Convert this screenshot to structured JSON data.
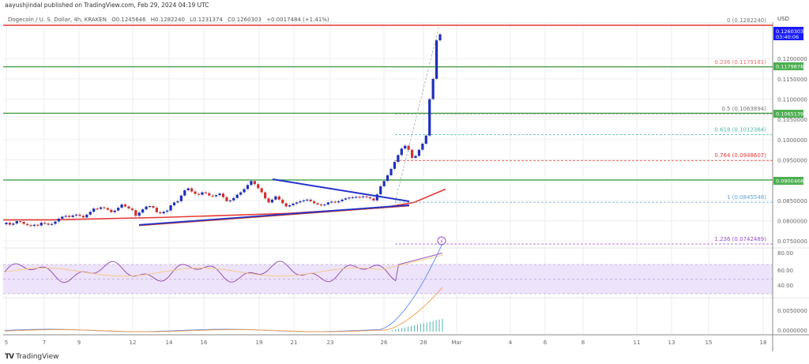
{
  "header": {
    "publisher": "aayushjindal published on TradingView.com, Feb 29, 2024 04:19 UTC",
    "symbol": "Dogecoin / U. S. Dollar, 4h, KRAKEN",
    "open": "O0.1245646",
    "high": "H0.1282240",
    "low": "L0.1231374",
    "close": "C0.1260303",
    "change": "+0.0017484 (+1.41%)"
  },
  "price_axis": {
    "currency": "USD",
    "ticks": [
      "0.1200000",
      "0.1150000",
      "0.1100000",
      "0.1050000",
      "0.1000000",
      "0.0950000",
      "0.0850000",
      "0.0800000",
      "0.0750000"
    ],
    "current_price": "0.1260303",
    "countdown": "03:40:06",
    "badges": [
      {
        "value": "0.1179878",
        "color": "#4caf50"
      },
      {
        "value": "0.1065139",
        "color": "#4caf50"
      },
      {
        "value": "0.0900468",
        "color": "#4caf50"
      }
    ]
  },
  "rsi_axis": {
    "ticks": [
      "80.00",
      "60.00",
      "40.00"
    ]
  },
  "macd_axis": {
    "ticks": [
      "0.0050000",
      "0.0000000"
    ]
  },
  "time_axis": {
    "ticks": [
      "5",
      "7",
      "9",
      "12",
      "14",
      "16",
      "19",
      "21",
      "23",
      "26",
      "28",
      "Mar",
      "4",
      "6",
      "8",
      "11",
      "13",
      "15",
      "18"
    ]
  },
  "footer": {
    "logo": "TV",
    "brand": "TradingView"
  },
  "colors": {
    "bull": "#1e2fb8",
    "bear": "#d32f2f",
    "resistance": "#e53935",
    "support": "#43a047",
    "trendline": "#2233cc",
    "ma": "#e53935",
    "rsi": "#8e44ad",
    "rsi_ma": "#f5c77e",
    "rsi_band": "#ede3fb",
    "macd": "#5b8def",
    "signal": "#f39c4a",
    "hist": "#26a69a",
    "price_badge": "#1a1aff"
  },
  "chart_data": {
    "type": "candlestick",
    "title": "Dogecoin / U. S. Dollar, 4h, KRAKEN",
    "xlabel": "",
    "ylabel": "USD",
    "ylim": [
      0.074,
      0.1285
    ],
    "x_ticks": [
      "5",
      "7",
      "9",
      "12",
      "14",
      "16",
      "19",
      "21",
      "23",
      "26",
      "28",
      "Mar",
      "4",
      "6",
      "8",
      "11",
      "13",
      "15",
      "18"
    ],
    "ohlc_last": {
      "open": 0.1245646,
      "high": 0.128224,
      "low": 0.1231374,
      "close": 0.1260303,
      "change": 0.0017484,
      "change_pct": 1.41
    },
    "horizontal_levels": [
      {
        "name": "resistance",
        "price": 0.128224,
        "color": "#e53935"
      },
      {
        "name": "support-1",
        "price": 0.1179878,
        "color": "#43a047"
      },
      {
        "name": "support-2",
        "price": 0.1065139,
        "color": "#43a047"
      },
      {
        "name": "support-3",
        "price": 0.0900468,
        "color": "#43a047"
      }
    ],
    "fibonacci": [
      {
        "level": "0",
        "price": 0.128224,
        "label": "0 (0.1282240)",
        "color": "#777777"
      },
      {
        "level": "0.236",
        "price": 0.1179181,
        "label": "0.236 (0.1179181)",
        "color": "#e57373"
      },
      {
        "level": "0.5",
        "price": 0.1063894,
        "label": "0.5 (0.1063894)",
        "color": "#777777"
      },
      {
        "level": "0.618",
        "price": 0.1012364,
        "label": "0.618 (0.1012364)",
        "color": "#4db6ac"
      },
      {
        "level": "0.764",
        "price": 0.0948607,
        "label": "0.764 (0.0948607)",
        "color": "#e53935"
      },
      {
        "level": "1",
        "price": 0.0845548,
        "label": "1 (0.0845548)",
        "color": "#64a0d0"
      },
      {
        "level": "1.236",
        "price": 0.0742489,
        "label": "1.236 (0.0742489)",
        "color": "#9c4dcc"
      }
    ],
    "trendlines": [
      {
        "name": "descending-resistance",
        "from": [
          345,
          0.0905
        ],
        "to": [
          518,
          0.0858
        ]
      },
      {
        "name": "ascending-support",
        "from": [
          175,
          0.08
        ],
        "to": [
          518,
          0.0838
        ]
      }
    ],
    "candles_close": [
      0.0795,
      0.079,
      0.0793,
      0.0799,
      0.0797,
      0.0792,
      0.0789,
      0.0787,
      0.079,
      0.0788,
      0.0795,
      0.0793,
      0.079,
      0.0792,
      0.0798,
      0.0805,
      0.081,
      0.0812,
      0.0809,
      0.0813,
      0.0815,
      0.0812,
      0.0808,
      0.0815,
      0.0822,
      0.083,
      0.0829,
      0.0833,
      0.0831,
      0.0827,
      0.0821,
      0.0825,
      0.0832,
      0.084,
      0.0835,
      0.083,
      0.0826,
      0.0812,
      0.082,
      0.0828,
      0.0835,
      0.0836,
      0.0832,
      0.0821,
      0.0818,
      0.0822,
      0.0825,
      0.0838,
      0.0845,
      0.0848,
      0.0862,
      0.0875,
      0.088,
      0.0872,
      0.0866,
      0.0864,
      0.087,
      0.0868,
      0.0862,
      0.086,
      0.0863,
      0.0867,
      0.0858,
      0.0848,
      0.085,
      0.0856,
      0.0864,
      0.087,
      0.0878,
      0.0888,
      0.0898,
      0.089,
      0.088,
      0.087,
      0.0855,
      0.0845,
      0.0852,
      0.086,
      0.0852,
      0.0843,
      0.0835,
      0.0838,
      0.0842,
      0.0845,
      0.0848,
      0.085,
      0.0852,
      0.0848,
      0.0843,
      0.084,
      0.0838,
      0.084,
      0.0845,
      0.0847,
      0.0845,
      0.0848,
      0.0852,
      0.0855,
      0.0857,
      0.0858,
      0.0859,
      0.0858,
      0.086,
      0.0858,
      0.0855,
      0.085,
      0.0865,
      0.0885,
      0.0898,
      0.0912,
      0.0928,
      0.0945,
      0.0962,
      0.0978,
      0.0985,
      0.0975,
      0.0955,
      0.096,
      0.0975,
      0.099,
      0.101,
      0.11,
      0.115,
      0.1245,
      0.126
    ],
    "moving_average": [
      [
        0,
        0.0802
      ],
      [
        60,
        0.0802
      ],
      [
        200,
        0.0808
      ],
      [
        360,
        0.0818
      ],
      [
        480,
        0.0832
      ],
      [
        520,
        0.0845
      ],
      [
        560,
        0.0878
      ]
    ],
    "rsi": {
      "ylim": [
        20,
        90
      ],
      "band": [
        40,
        70
      ],
      "mid": 55
    },
    "macd": {
      "ylim": [
        -0.001,
        0.0085
      ]
    }
  }
}
